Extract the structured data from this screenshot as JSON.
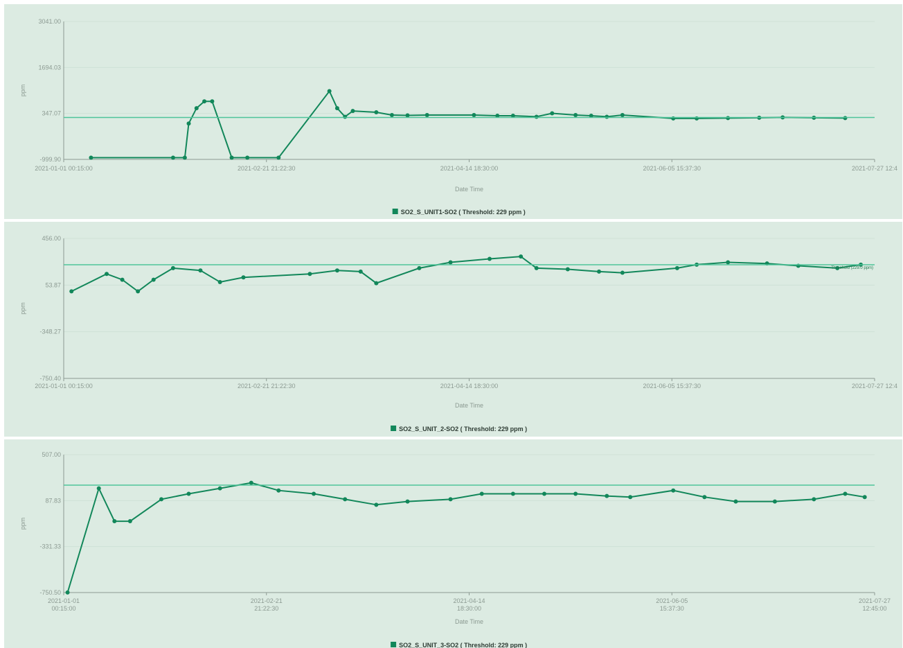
{
  "colors": {
    "series": "#12875a",
    "threshold": "#4fc49a",
    "background": "#dcebe2",
    "grid": "#cfe0d6",
    "axis": "#8c9a92"
  },
  "chart_data": [
    {
      "type": "scatter",
      "xlabel": "Date Time",
      "ylabel": "ppm",
      "yticks": [
        "3041.00",
        "1694.03",
        "347.07",
        "-999.90"
      ],
      "ylim": [
        -999.9,
        3041
      ],
      "xticks": [
        "2021-01-01 00:15:00",
        "2021-02-21 21:22:30",
        "2021-04-14 18:30:00",
        "2021-06-05 15:37:30",
        "2021-07-27 12:4"
      ],
      "xlim": [
        "2021-01-01 00:15",
        "2021-07-27 12:45"
      ],
      "threshold": 229,
      "legend": "SO2_S_UNIT1-SO2 ( Threshold: 229 ppm )",
      "threshold_label": "",
      "grid": true,
      "series": [
        {
          "x": [
            "2021-01-08",
            "2021-01-29",
            "2021-02-01",
            "2021-02-02",
            "2021-02-04",
            "2021-02-06",
            "2021-02-08",
            "2021-02-13",
            "2021-02-17",
            "2021-02-25",
            "2021-03-10",
            "2021-03-12",
            "2021-03-14",
            "2021-03-16",
            "2021-03-22",
            "2021-03-26",
            "2021-03-30",
            "2021-04-04",
            "2021-04-16",
            "2021-04-22",
            "2021-04-26",
            "2021-05-02",
            "2021-05-06",
            "2021-05-12",
            "2021-05-16",
            "2021-05-20",
            "2021-05-24",
            "2021-06-06",
            "2021-06-12",
            "2021-06-20",
            "2021-06-28",
            "2021-07-04",
            "2021-07-12",
            "2021-07-20"
          ],
          "y": [
            -950,
            -950,
            -950,
            50,
            500,
            700,
            700,
            -950,
            -950,
            -950,
            1000,
            500,
            250,
            420,
            380,
            300,
            290,
            300,
            300,
            280,
            280,
            250,
            350,
            300,
            280,
            250,
            300,
            200,
            200,
            210,
            220,
            230,
            220,
            210
          ]
        }
      ]
    },
    {
      "type": "scatter",
      "xlabel": "Date Time",
      "ylabel": "ppm",
      "yticks": [
        "456.00",
        "53.87",
        "-348.27",
        "-750.40"
      ],
      "ylim": [
        -750.4,
        456
      ],
      "xticks": [
        "2021-01-01 00:15:00",
        "2021-02-21 21:22:30",
        "2021-04-14 18:30:00",
        "2021-06-05 15:37:30",
        "2021-07-27 12:4"
      ],
      "xlim": [
        "2021-01-01 00:15",
        "2021-07-27 12:45"
      ],
      "threshold": 229,
      "legend": "SO2_S_UNIT_2-SO2 ( Threshold: 229 ppm )",
      "threshold_label": "Threshold (229.0 ppm)",
      "grid": true,
      "series": [
        {
          "x": [
            "2021-01-03",
            "2021-01-12",
            "2021-01-16",
            "2021-01-20",
            "2021-01-24",
            "2021-01-29",
            "2021-02-05",
            "2021-02-10",
            "2021-02-16",
            "2021-03-05",
            "2021-03-12",
            "2021-03-18",
            "2021-03-22",
            "2021-04-02",
            "2021-04-10",
            "2021-04-20",
            "2021-04-28",
            "2021-05-02",
            "2021-05-10",
            "2021-05-18",
            "2021-05-24",
            "2021-06-07",
            "2021-06-12",
            "2021-06-20",
            "2021-06-30",
            "2021-07-08",
            "2021-07-18",
            "2021-07-24"
          ],
          "y": [
            0,
            150,
            100,
            0,
            100,
            200,
            180,
            80,
            120,
            150,
            180,
            170,
            70,
            200,
            250,
            280,
            300,
            200,
            190,
            170,
            160,
            200,
            230,
            250,
            240,
            220,
            200,
            230
          ]
        }
      ]
    },
    {
      "type": "scatter",
      "xlabel": "Date Time",
      "ylabel": "ppm",
      "yticks": [
        "507.00",
        "87.83",
        "-331.33",
        "-750.50"
      ],
      "ylim": [
        -750.5,
        507
      ],
      "xticks": [
        "2021-01-01 00:15:00",
        "2021-02-21 21:22:30",
        "2021-04-14 18:30:00",
        "2021-06-05 15:37:30",
        "2021-07-27 12:45:00"
      ],
      "xlim": [
        "2021-01-01 00:15",
        "2021-07-27 12:45"
      ],
      "threshold": 229,
      "legend": "SO2_S_UNIT_3-SO2 ( Threshold: 229 ppm )",
      "threshold_label": "",
      "grid": true,
      "series": [
        {
          "x": [
            "2021-01-02",
            "2021-01-10",
            "2021-01-14",
            "2021-01-18",
            "2021-01-26",
            "2021-02-02",
            "2021-02-10",
            "2021-02-18",
            "2021-02-25",
            "2021-03-06",
            "2021-03-14",
            "2021-03-22",
            "2021-03-30",
            "2021-04-10",
            "2021-04-18",
            "2021-04-26",
            "2021-05-04",
            "2021-05-12",
            "2021-05-20",
            "2021-05-26",
            "2021-06-06",
            "2021-06-14",
            "2021-06-22",
            "2021-07-02",
            "2021-07-12",
            "2021-07-20",
            "2021-07-25"
          ],
          "y": [
            -750,
            200,
            -100,
            -100,
            100,
            150,
            200,
            250,
            180,
            150,
            100,
            50,
            80,
            100,
            150,
            150,
            150,
            150,
            130,
            120,
            180,
            120,
            80,
            80,
            100,
            150,
            120
          ]
        }
      ]
    }
  ]
}
